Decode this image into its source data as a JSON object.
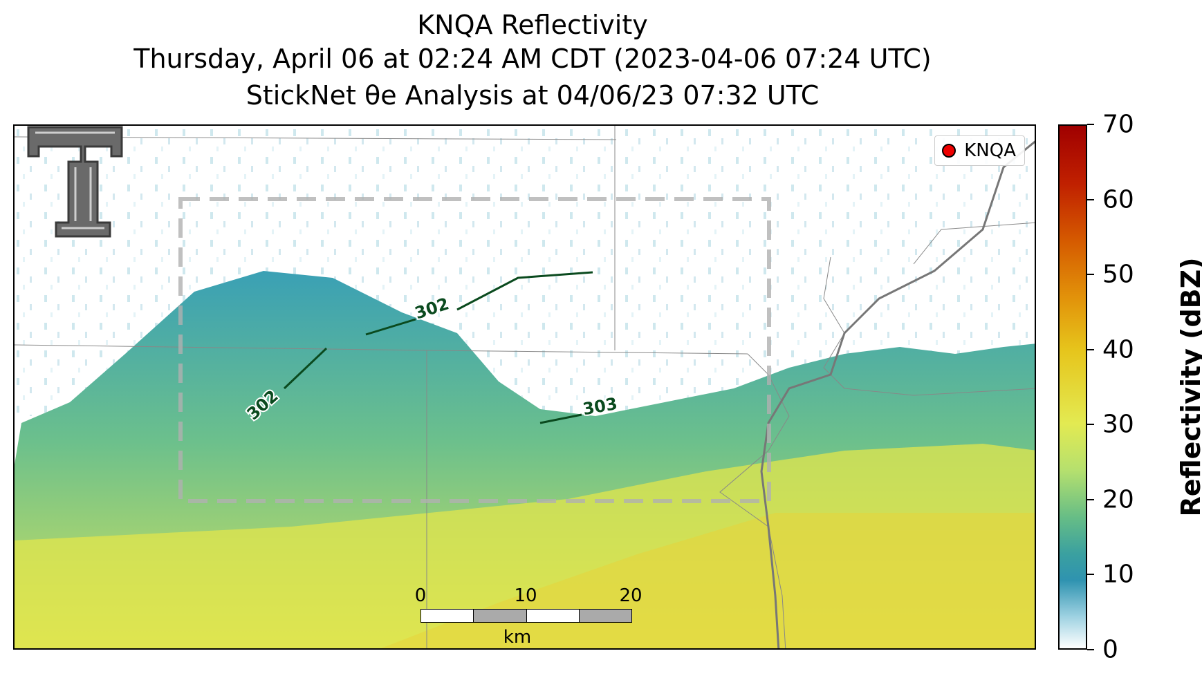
{
  "title": {
    "line1": "KNQA Reflectivity",
    "line2": "Thursday, April 06 at 02:24 AM CDT (2023-04-06 07:24 UTC)",
    "line3": "StickNet θe Analysis at 04/06/23 07:32 UTC"
  },
  "legend": {
    "label": "KNQA",
    "marker_color": "#e00000"
  },
  "contours": [
    {
      "label": "302"
    },
    {
      "label": "302"
    },
    {
      "label": "303"
    }
  ],
  "scalebar": {
    "ticks": [
      "0",
      "10",
      "20"
    ],
    "unit": "km",
    "fill_colors": [
      "#ffffff",
      "#aaaaaa"
    ]
  },
  "colorbar": {
    "label": "Reflectivity (dBZ)",
    "ticks": [
      "0",
      "10",
      "20",
      "30",
      "40",
      "50",
      "60",
      "70"
    ],
    "min": 0,
    "max": 70
  },
  "colors": {
    "contour": "#0a4a1e",
    "domain_box": "#b0b0b0",
    "interstate": "#777777",
    "boundary": "#888888"
  },
  "logo": {
    "icon": "texas-tech-double-t-logo"
  }
}
